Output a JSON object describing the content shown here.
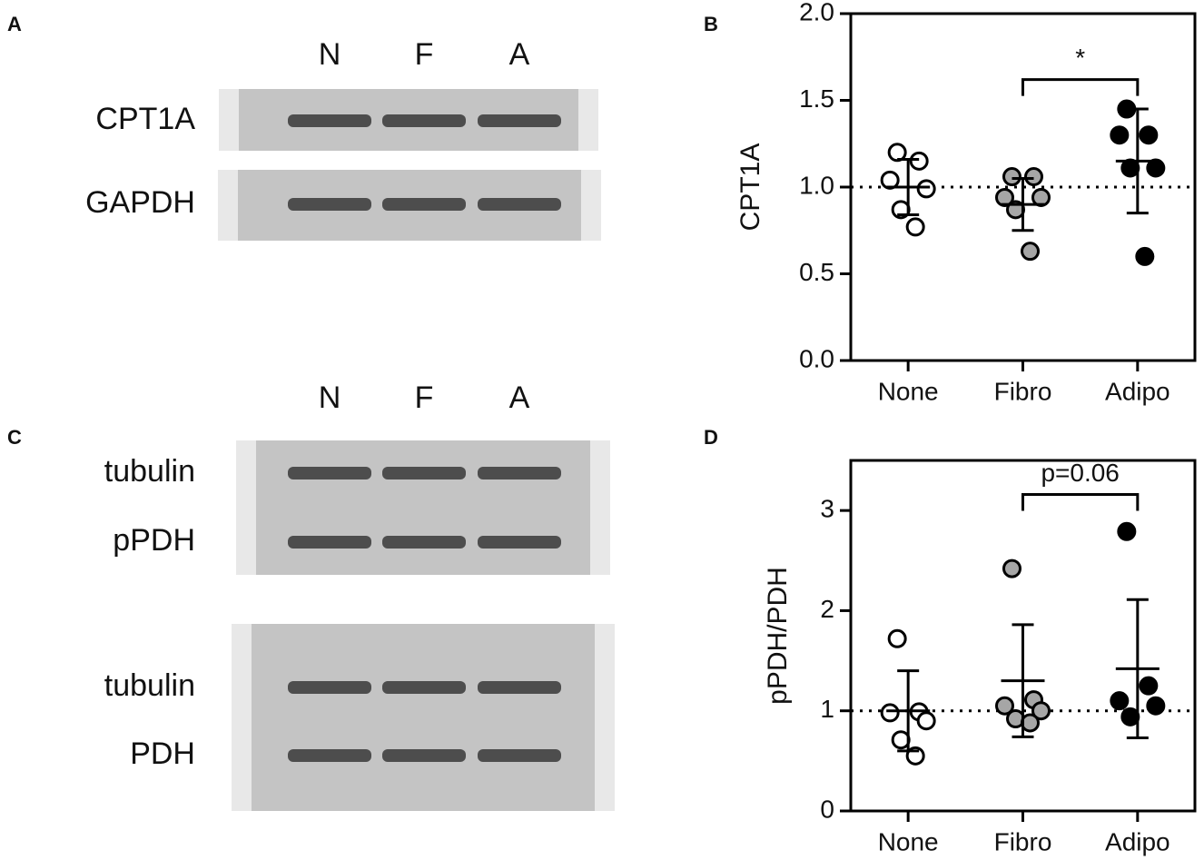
{
  "blots": [
    {
      "panel": "A",
      "lanes": [
        "N",
        "F",
        "A"
      ],
      "rows": [
        "CPT1A",
        "GAPDH"
      ]
    },
    {
      "panel": "C",
      "lanes": [
        "N",
        "F",
        "A"
      ],
      "rows": [
        "tubulin",
        "pPDH",
        "tubulin",
        "PDH"
      ]
    }
  ],
  "chart_data": [
    {
      "type": "scatter",
      "panel": "B",
      "ylabel": "CPT1A",
      "categories": [
        "None",
        "Fibro",
        "Adipo"
      ],
      "values": [
        [
          1.2,
          1.15,
          1.04,
          0.99,
          0.87,
          0.77
        ],
        [
          1.06,
          1.06,
          0.94,
          0.94,
          0.87,
          0.63
        ],
        [
          1.45,
          1.3,
          1.3,
          1.11,
          1.11,
          0.6
        ]
      ],
      "means": [
        1.0,
        0.9,
        1.15
      ],
      "errors": [
        0.16,
        0.15,
        0.3
      ],
      "colors": [
        "#ffffff",
        "#a6a6a6",
        "#000000"
      ],
      "ylim": [
        0,
        2.0
      ],
      "yticks": [
        {
          "value": 0,
          "label": "0.0"
        },
        {
          "value": 0.5,
          "label": "0.5"
        },
        {
          "value": 1,
          "label": "1.0"
        },
        {
          "value": 1.5,
          "label": "1.5"
        },
        {
          "value": 2,
          "label": "2.0"
        }
      ],
      "refline": 1,
      "bracket": {
        "from": 1,
        "to": 2,
        "y": 1.62,
        "label": "*"
      }
    },
    {
      "type": "scatter",
      "panel": "D",
      "ylabel": "pPDH/PDH",
      "categories": [
        "None",
        "Fibro",
        "Adipo"
      ],
      "values": [
        [
          1.72,
          0.99,
          0.98,
          0.9,
          0.71,
          0.55
        ],
        [
          2.42,
          1.11,
          1.05,
          1.0,
          0.92,
          0.88
        ],
        [
          2.79,
          1.25,
          1.1,
          1.05,
          0.94
        ]
      ],
      "means": [
        1.0,
        1.3,
        1.42
      ],
      "errors": [
        0.4,
        0.56,
        0.69
      ],
      "colors": [
        "#ffffff",
        "#a6a6a6",
        "#000000"
      ],
      "ylim": [
        0,
        3.5
      ],
      "yticks": [
        0,
        1,
        2,
        3
      ],
      "refline": 1,
      "bracket": {
        "from": 1,
        "to": 2,
        "y": 3.16,
        "label": "p=0.06"
      }
    }
  ]
}
